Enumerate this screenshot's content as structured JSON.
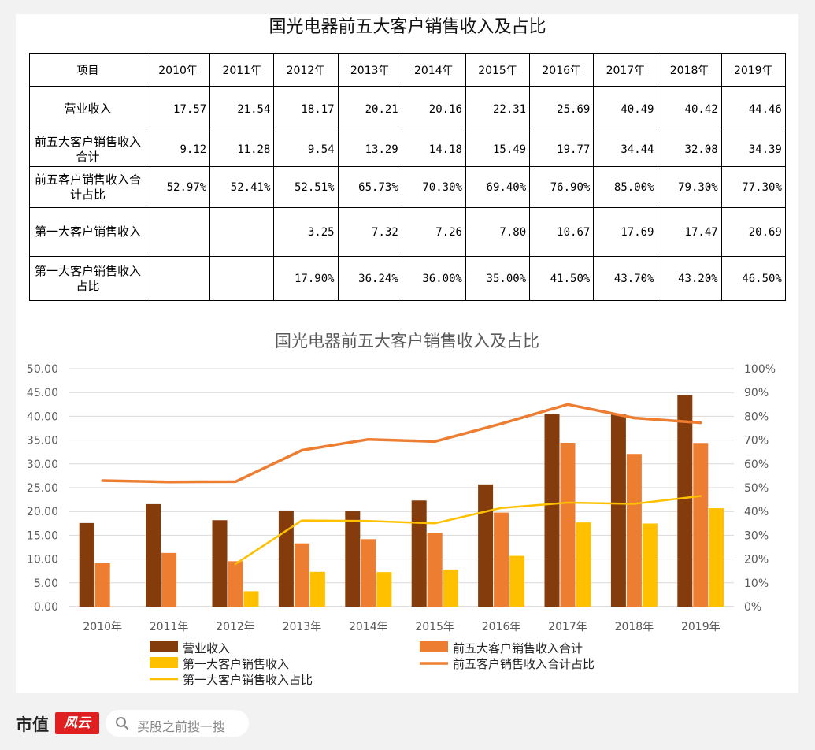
{
  "table": {
    "title": "国光电器前五大客户销售收入及占比",
    "header": [
      "项目",
      "2010年",
      "2011年",
      "2012年",
      "2013年",
      "2014年",
      "2015年",
      "2016年",
      "2017年",
      "2018年",
      "2019年"
    ],
    "rows": [
      {
        "label": "营业收入",
        "cells": [
          "17.57",
          "21.54",
          "18.17",
          "20.21",
          "20.16",
          "22.31",
          "25.69",
          "40.49",
          "40.42",
          "44.46"
        ]
      },
      {
        "label": "前五大客户销售收入合计",
        "cells": [
          "9.12",
          "11.28",
          "9.54",
          "13.29",
          "14.18",
          "15.49",
          "19.77",
          "34.44",
          "32.08",
          "34.39"
        ]
      },
      {
        "label": "前五客户销售收入合计占比",
        "cells": [
          "52.97%",
          "52.41%",
          "52.51%",
          "65.73%",
          "70.30%",
          "69.40%",
          "76.90%",
          "85.00%",
          "79.30%",
          "77.30%"
        ]
      },
      {
        "label": "第一大客户销售收入",
        "cells": [
          "",
          "",
          "3.25",
          "7.32",
          "7.26",
          "7.80",
          "10.67",
          "17.69",
          "17.47",
          "20.69"
        ]
      },
      {
        "label": "第一大客户销售收入占比",
        "cells": [
          "",
          "",
          "17.90%",
          "36.24%",
          "36.00%",
          "35.00%",
          "41.50%",
          "43.70%",
          "43.20%",
          "46.50%"
        ]
      }
    ]
  },
  "chart_data": {
    "type": "bar",
    "title": "国光电器前五大客户销售收入及占比",
    "categories": [
      "2010年",
      "2011年",
      "2012年",
      "2013年",
      "2014年",
      "2015年",
      "2016年",
      "2017年",
      "2018年",
      "2019年"
    ],
    "ylim": [
      0,
      50
    ],
    "y_ticks": [
      "0.00",
      "5.00",
      "10.00",
      "15.00",
      "20.00",
      "25.00",
      "30.00",
      "35.00",
      "40.00",
      "45.00",
      "50.00"
    ],
    "y2lim": [
      0,
      100
    ],
    "y2_ticks": [
      "0%",
      "10%",
      "20%",
      "30%",
      "40%",
      "50%",
      "60%",
      "70%",
      "80%",
      "90%",
      "100%"
    ],
    "grid": true,
    "legend_position": "bottom",
    "series": [
      {
        "name": "营业收入",
        "kind": "bar",
        "axis": "left",
        "color": "#843c0c",
        "values": [
          17.57,
          21.54,
          18.17,
          20.21,
          20.16,
          22.31,
          25.69,
          40.49,
          40.42,
          44.46
        ]
      },
      {
        "name": "前五大客户销售收入合计",
        "kind": "bar",
        "axis": "left",
        "color": "#ed7d31",
        "values": [
          9.12,
          11.28,
          9.54,
          13.29,
          14.18,
          15.49,
          19.77,
          34.44,
          32.08,
          34.39
        ]
      },
      {
        "name": "第一大客户销售收入",
        "kind": "bar",
        "axis": "left",
        "color": "#ffc000",
        "values": [
          null,
          null,
          3.25,
          7.32,
          7.26,
          7.8,
          10.67,
          17.69,
          17.47,
          20.69
        ]
      },
      {
        "name": "前五客户销售收入合计占比",
        "kind": "line",
        "axis": "right",
        "color": "#ed7d31",
        "values": [
          52.97,
          52.41,
          52.51,
          65.73,
          70.3,
          69.4,
          76.9,
          85.0,
          79.3,
          77.3
        ]
      },
      {
        "name": "第一大客户销售收入占比",
        "kind": "line",
        "axis": "right",
        "color": "#ffc000",
        "values": [
          null,
          null,
          17.9,
          36.24,
          36.0,
          35.0,
          41.5,
          43.7,
          43.2,
          46.5
        ]
      }
    ]
  },
  "footer": {
    "brand": "市值",
    "brand_mark": "风云",
    "search_placeholder": "买股之前搜一搜",
    "icon": "search-icon"
  }
}
